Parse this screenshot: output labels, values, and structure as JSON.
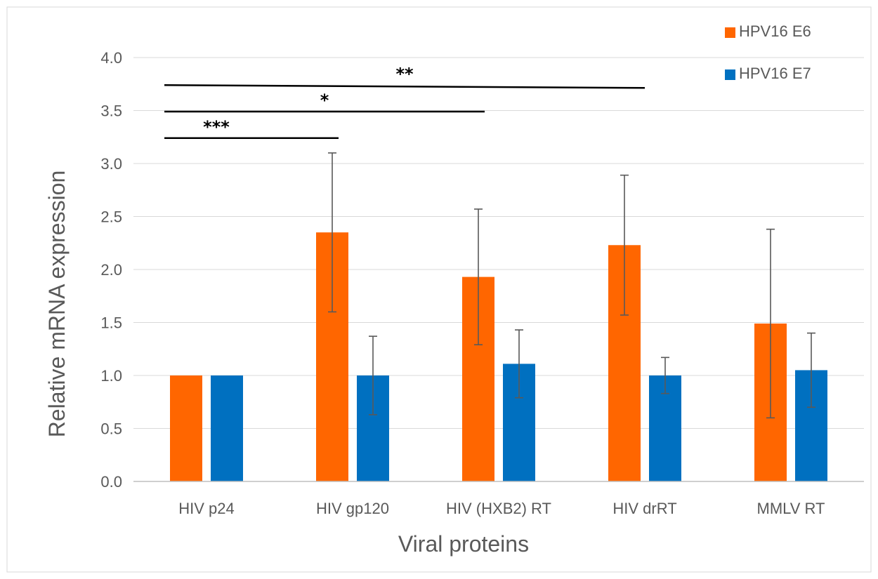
{
  "chart_data": {
    "type": "bar",
    "xlabel": "Viral proteins",
    "ylabel": "Relative mRNA  expression",
    "ylim": [
      0,
      4.0
    ],
    "yticks": [
      "0.0",
      "0.5",
      "1.0",
      "1.5",
      "2.0",
      "2.5",
      "3.0",
      "3.5",
      "4.0"
    ],
    "grid": true,
    "legend_position": "top-right",
    "categories": [
      "HIV p24",
      "HIV gp120",
      "HIV (HXB2) RT",
      "HIV drRT",
      "MMLV RT"
    ],
    "series": [
      {
        "name": "HPV16 E6",
        "color": "#FF6600",
        "values": [
          1.0,
          2.35,
          1.93,
          2.23,
          1.49
        ],
        "error": [
          0.0,
          0.75,
          0.64,
          0.66,
          0.89
        ]
      },
      {
        "name": "HPV16 E7",
        "color": "#0070C0",
        "values": [
          1.0,
          1.0,
          1.11,
          1.0,
          1.05
        ],
        "error": [
          0.0,
          0.37,
          0.32,
          0.17,
          0.35
        ]
      }
    ],
    "annotations": [
      {
        "label": "***",
        "from_category": "HIV p24",
        "to_category": "HIV gp120",
        "y": 3.24
      },
      {
        "label": "*",
        "from_category": "HIV p24",
        "to_category": "HIV (HXB2) RT",
        "y": 3.49
      },
      {
        "label": "**",
        "from_category": "HIV p24",
        "to_category": "HIV drRT",
        "y": 3.74
      }
    ]
  }
}
